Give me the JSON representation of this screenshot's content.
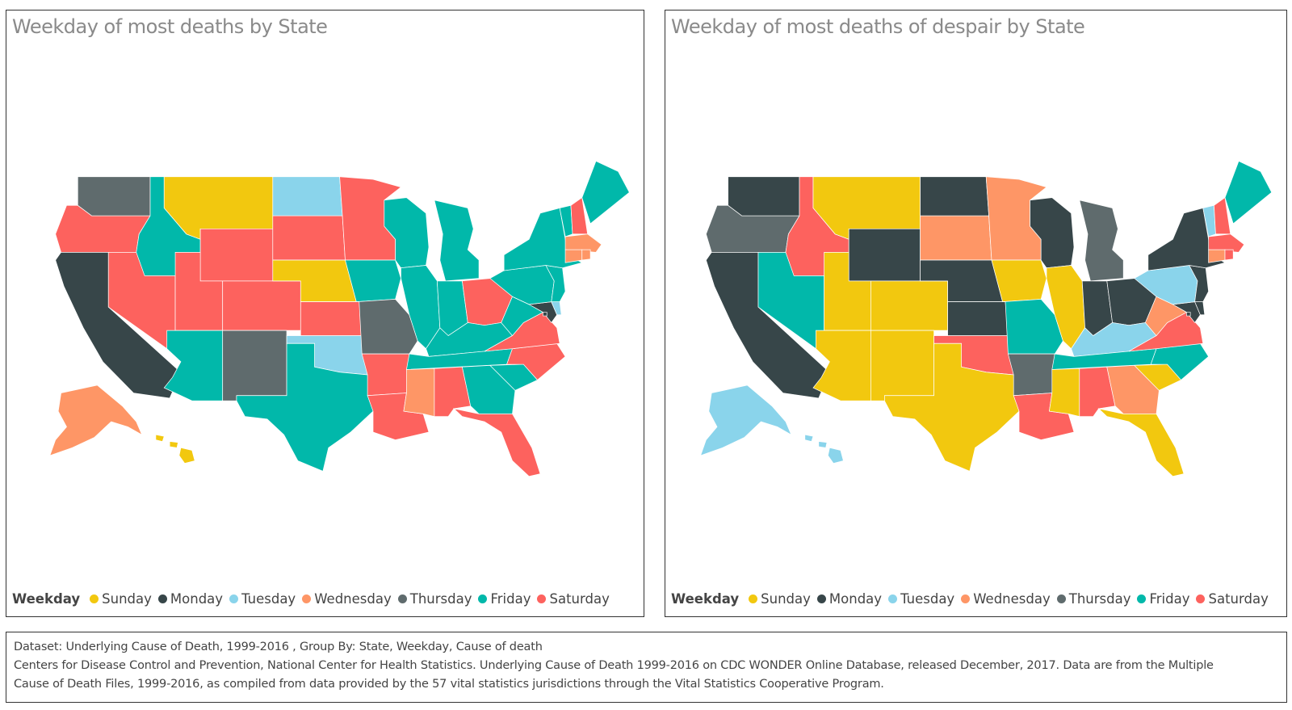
{
  "weekday_colors": {
    "Sunday": "#F2C80F",
    "Monday": "#374649",
    "Tuesday": "#8AD4EB",
    "Wednesday": "#FE9666",
    "Thursday": "#5F6B6D",
    "Friday": "#01B8AA",
    "Saturday": "#FD625E"
  },
  "legend": {
    "title": "Weekday",
    "items": [
      "Sunday",
      "Monday",
      "Tuesday",
      "Wednesday",
      "Thursday",
      "Friday",
      "Saturday"
    ]
  },
  "maps": [
    {
      "title": "Weekday of most deaths by State",
      "states": {
        "WA": "Thursday",
        "OR": "Saturday",
        "CA": "Monday",
        "NV": "Saturday",
        "ID": "Friday",
        "MT": "Sunday",
        "WY": "Saturday",
        "UT": "Saturday",
        "AZ": "Friday",
        "CO": "Saturday",
        "NM": "Thursday",
        "ND": "Tuesday",
        "SD": "Saturday",
        "NE": "Sunday",
        "KS": "Saturday",
        "OK": "Tuesday",
        "TX": "Friday",
        "MN": "Saturday",
        "IA": "Friday",
        "MO": "Thursday",
        "AR": "Saturday",
        "LA": "Saturday",
        "WI": "Friday",
        "IL": "Friday",
        "MI": "Friday",
        "IN": "Friday",
        "OH": "Saturday",
        "KY": "Friday",
        "TN": "Friday",
        "MS": "Wednesday",
        "AL": "Saturday",
        "GA": "Friday",
        "FL": "Saturday",
        "SC": "Friday",
        "NC": "Saturday",
        "VA": "Saturday",
        "WV": "Friday",
        "PA": "Friday",
        "NY": "Friday",
        "VT": "Friday",
        "NH": "Saturday",
        "ME": "Friday",
        "MA": "Wednesday",
        "RI": "Wednesday",
        "CT": "Wednesday",
        "NJ": "Friday",
        "DE": "Tuesday",
        "MD": "Monday",
        "DC": "Monday",
        "AK": "Wednesday",
        "HI": "Sunday"
      }
    },
    {
      "title": "Weekday of most deaths of despair by State",
      "states": {
        "WA": "Monday",
        "OR": "Thursday",
        "CA": "Monday",
        "NV": "Friday",
        "ID": "Saturday",
        "MT": "Sunday",
        "WY": "Monday",
        "UT": "Sunday",
        "AZ": "Sunday",
        "CO": "Sunday",
        "NM": "Sunday",
        "ND": "Monday",
        "SD": "Wednesday",
        "NE": "Monday",
        "KS": "Monday",
        "OK": "Saturday",
        "TX": "Sunday",
        "MN": "Wednesday",
        "IA": "Sunday",
        "MO": "Friday",
        "AR": "Thursday",
        "LA": "Saturday",
        "WI": "Monday",
        "IL": "Sunday",
        "MI": "Thursday",
        "IN": "Monday",
        "OH": "Monday",
        "KY": "Tuesday",
        "TN": "Friday",
        "MS": "Sunday",
        "AL": "Saturday",
        "GA": "Wednesday",
        "FL": "Sunday",
        "SC": "Sunday",
        "NC": "Friday",
        "VA": "Saturday",
        "WV": "Wednesday",
        "PA": "Tuesday",
        "NY": "Monday",
        "VT": "Tuesday",
        "NH": "Saturday",
        "ME": "Friday",
        "MA": "Saturday",
        "RI": "Saturday",
        "CT": "Wednesday",
        "NJ": "Monday",
        "DE": "Monday",
        "MD": "Monday",
        "DC": "Monday",
        "AK": "Tuesday",
        "HI": "Tuesday"
      }
    }
  ],
  "source": {
    "line1": "Dataset: Underlying Cause of Death, 1999-2016 , Group By: State, Weekday, Cause of death",
    "line2": "Centers for Disease Control and Prevention, National Center for Health Statistics. Underlying Cause of Death 1999-2016 on CDC WONDER Online Database, released December, 2017. Data are from the Multiple",
    "line3": "Cause of Death Files, 1999-2016, as compiled from data provided by the 57 vital statistics jurisdictions through the Vital Statistics Cooperative Program."
  }
}
